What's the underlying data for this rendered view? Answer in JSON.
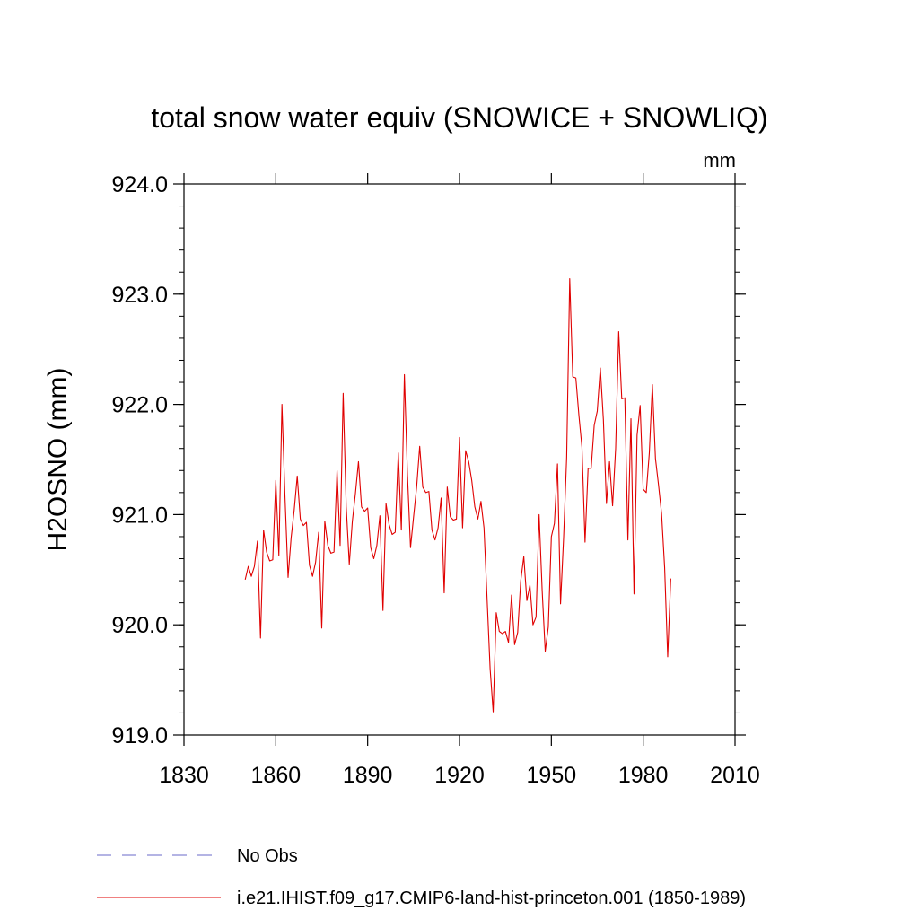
{
  "chart_data": {
    "type": "line",
    "title": "total snow water equiv (SNOWICE + SNOWLIQ)",
    "units_label": "mm",
    "ylabel": "H2OSNO  (mm)",
    "xlabel": "",
    "xlim": [
      1830,
      2010
    ],
    "ylim": [
      919.0,
      924.0
    ],
    "x_ticks": [
      "1830",
      "1860",
      "1890",
      "1920",
      "1950",
      "1980",
      "2010"
    ],
    "y_ticks": [
      "919.0",
      "920.0",
      "921.0",
      "922.0",
      "923.0",
      "924.0"
    ],
    "grid": false,
    "legend_position": "bottom-left",
    "series": [
      {
        "name": "i.e21.IHIST.f09_g17.CMIP6-land-hist-princeton.001 (1850-1989)",
        "color": "#e00000",
        "style": "solid",
        "x_start": 1850,
        "values": [
          920.41,
          920.53,
          920.44,
          920.53,
          920.76,
          919.88,
          920.86,
          920.66,
          920.58,
          920.59,
          921.31,
          920.63,
          922.0,
          921.16,
          920.43,
          920.79,
          921.04,
          921.35,
          920.96,
          920.9,
          920.93,
          920.54,
          920.44,
          920.57,
          920.84,
          919.97,
          920.94,
          920.72,
          920.65,
          920.66,
          921.4,
          920.72,
          922.1,
          921.07,
          920.55,
          920.94,
          921.19,
          921.48,
          921.07,
          921.03,
          921.06,
          920.7,
          920.6,
          920.72,
          920.99,
          920.13,
          921.1,
          920.91,
          920.82,
          920.84,
          921.56,
          920.86,
          922.27,
          921.36,
          920.7,
          920.98,
          921.25,
          921.62,
          921.25,
          921.2,
          921.21,
          920.86,
          920.77,
          920.88,
          921.15,
          920.29,
          921.25,
          920.98,
          920.95,
          920.96,
          921.7,
          920.88,
          921.58,
          921.48,
          921.31,
          921.07,
          920.96,
          921.12,
          920.88,
          920.24,
          919.6,
          919.21,
          920.11,
          919.94,
          919.92,
          919.94,
          919.84,
          920.27,
          919.82,
          919.93,
          920.4,
          920.62,
          920.22,
          920.36,
          920.0,
          920.07,
          921.0,
          920.31,
          919.76,
          919.98,
          920.8,
          920.92,
          921.46,
          920.19,
          920.79,
          921.52,
          923.14,
          922.25,
          922.24,
          921.9,
          921.61,
          920.75,
          921.42,
          921.42,
          921.81,
          921.94,
          922.33,
          921.86,
          921.1,
          921.48,
          921.08,
          921.6,
          922.66,
          922.05,
          922.06,
          920.77,
          921.87,
          920.28,
          921.72,
          921.99,
          921.23,
          921.2,
          921.56,
          922.18,
          921.51,
          921.27,
          921.01,
          920.52,
          919.71,
          920.42
        ]
      },
      {
        "name": "No Obs",
        "color": "#6a6ac8",
        "style": "dashed",
        "values": []
      }
    ]
  }
}
